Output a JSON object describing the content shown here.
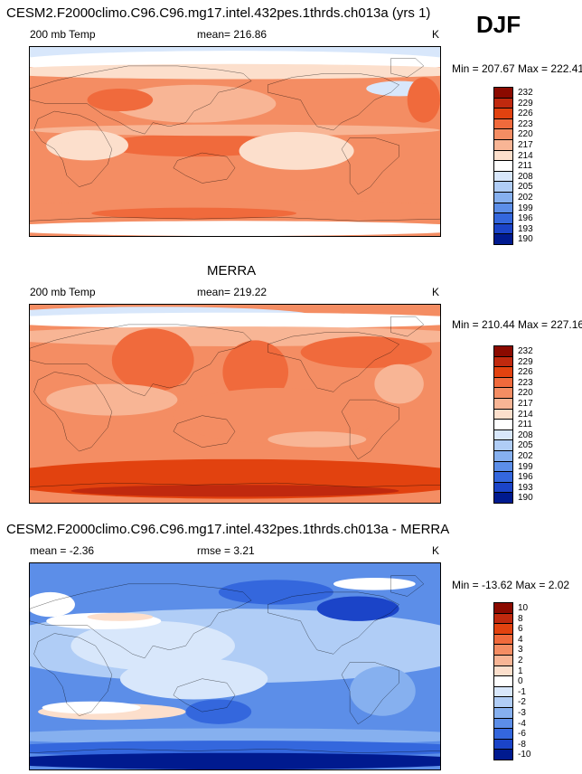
{
  "season": "DJF",
  "chart_data": [
    {
      "type": "heatmap",
      "panel": "model",
      "title": "CESM2.F2000climo.C96.C96.mg17.intel.432pes.1thrds.ch013a (yrs 1)",
      "variable": "200 mb Temp",
      "mean_label": "mean= 216.86",
      "units": "K",
      "minmax_label": "Min = 207.67 Max = 222.41",
      "min": 207.67,
      "max": 222.41,
      "mean": 216.86,
      "colorbar_levels": [
        "232",
        "229",
        "226",
        "223",
        "220",
        "217",
        "214",
        "211",
        "208",
        "205",
        "202",
        "199",
        "196",
        "193",
        "190"
      ],
      "colorbar_colors": [
        "#8b0a00",
        "#c0290e",
        "#e2420f",
        "#f06a3c",
        "#f48d63",
        "#f8b595",
        "#fcdfcc",
        "#ffffff",
        "#d8e7fb",
        "#b0cdf6",
        "#86b0ef",
        "#5c8ee8",
        "#3467dd",
        "#1b44c8",
        "#001a8f"
      ]
    },
    {
      "type": "heatmap",
      "panel": "obs",
      "title": "MERRA",
      "variable": "200 mb Temp",
      "mean_label": "mean= 219.22",
      "units": "K",
      "minmax_label": "Min = 210.44 Max = 227.16",
      "min": 210.44,
      "max": 227.16,
      "mean": 219.22,
      "colorbar_levels": [
        "232",
        "229",
        "226",
        "223",
        "220",
        "217",
        "214",
        "211",
        "208",
        "205",
        "202",
        "199",
        "196",
        "193",
        "190"
      ],
      "colorbar_colors": [
        "#8b0a00",
        "#c0290e",
        "#e2420f",
        "#f06a3c",
        "#f48d63",
        "#f8b595",
        "#fcdfcc",
        "#ffffff",
        "#d8e7fb",
        "#b0cdf6",
        "#86b0ef",
        "#5c8ee8",
        "#3467dd",
        "#1b44c8",
        "#001a8f"
      ]
    },
    {
      "type": "heatmap",
      "panel": "diff",
      "title": "CESM2.F2000climo.C96.C96.mg17.intel.432pes.1thrds.ch013a - MERRA",
      "variable": "",
      "mean_label": "mean = -2.36",
      "rmse_label": "rmse =   3.21",
      "units": "K",
      "minmax_label": "Min = -13.62 Max =   2.02",
      "min": -13.62,
      "max": 2.02,
      "mean": -2.36,
      "rmse": 3.21,
      "colorbar_levels": [
        "10",
        "8",
        "6",
        "4",
        "3",
        "2",
        "1",
        "0",
        "-1",
        "-2",
        "-3",
        "-4",
        "-6",
        "-8",
        "-10"
      ],
      "colorbar_colors": [
        "#8b0a00",
        "#c0290e",
        "#e2420f",
        "#f06a3c",
        "#f48d63",
        "#f8b595",
        "#fcdfcc",
        "#ffffff",
        "#d8e7fb",
        "#b0cdf6",
        "#86b0ef",
        "#5c8ee8",
        "#3467dd",
        "#1b44c8",
        "#001a8f"
      ]
    }
  ]
}
